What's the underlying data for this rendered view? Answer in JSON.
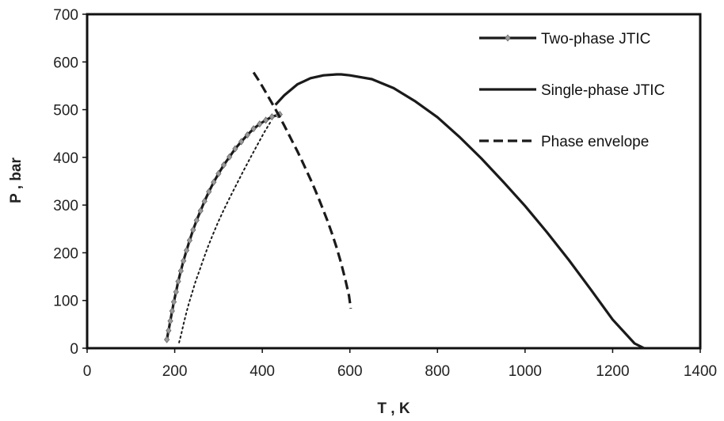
{
  "chart_data": {
    "type": "line",
    "title": "",
    "xlabel": "T , K",
    "ylabel": "P , bar",
    "xlim": [
      0,
      1400
    ],
    "ylim": [
      0,
      700
    ],
    "x_ticks": [
      0,
      200,
      400,
      600,
      800,
      1000,
      1200,
      1400
    ],
    "y_ticks": [
      0,
      100,
      200,
      300,
      400,
      500,
      600,
      700
    ],
    "grid": false,
    "legend_position": "top-right",
    "series": [
      {
        "name": "Two-phase JTIC",
        "style": "solid-with-diamond-markers",
        "color": "#1a1a1a",
        "marker_color": "#9a9a9a",
        "x": [
          182,
          186,
          190,
          194,
          198,
          203,
          208,
          214,
          220,
          227,
          234,
          242,
          250,
          259,
          268,
          278,
          289,
          300,
          312,
          325,
          338,
          352,
          366,
          380,
          394,
          408,
          422,
          436,
          440
        ],
        "y": [
          18,
          37,
          57,
          78,
          97,
          118,
          140,
          162,
          183,
          205,
          226,
          248,
          268,
          288,
          308,
          328,
          348,
          366,
          384,
          401,
          418,
          433,
          447,
          460,
          470,
          478,
          485,
          489,
          490
        ]
      },
      {
        "name": "Single-phase JTIC",
        "style": "solid",
        "color": "#1a1a1a",
        "x": [
          430,
          450,
          480,
          510,
          540,
          570,
          580,
          600,
          650,
          700,
          750,
          800,
          850,
          900,
          950,
          1000,
          1050,
          1100,
          1150,
          1200,
          1250,
          1272
        ],
        "y": [
          510,
          530,
          553,
          566,
          572,
          574,
          574,
          572,
          564,
          545,
          517,
          484,
          443,
          398,
          349,
          298,
          243,
          185,
          123,
          60,
          10,
          0
        ]
      },
      {
        "name": "Phase envelope",
        "style": "dashed",
        "color": "#1a1a1a",
        "x": [
          380,
          390,
          400,
          410,
          420,
          430,
          440,
          450,
          460,
          470,
          480,
          490,
          500,
          510,
          520,
          530,
          540,
          550,
          560,
          570,
          580,
          590,
          598,
          602
        ],
        "y": [
          578,
          564,
          549,
          533,
          517,
          501,
          484,
          467,
          449,
          431,
          413,
          394,
          374,
          354,
          333,
          311,
          288,
          264,
          238,
          210,
          178,
          142,
          110,
          83
        ]
      },
      {
        "name": "",
        "style": "dotted",
        "color": "#1a1a1a",
        "x": [
          210,
          215,
          220,
          226,
          232,
          240,
          248,
          257,
          266,
          276,
          287,
          299,
          312,
          326,
          341,
          356,
          372,
          388,
          404,
          420
        ],
        "y": [
          12,
          30,
          50,
          72,
          93,
          117,
          141,
          164,
          188,
          213,
          238,
          264,
          290,
          316,
          343,
          370,
          398,
          425,
          452,
          476
        ]
      }
    ]
  }
}
